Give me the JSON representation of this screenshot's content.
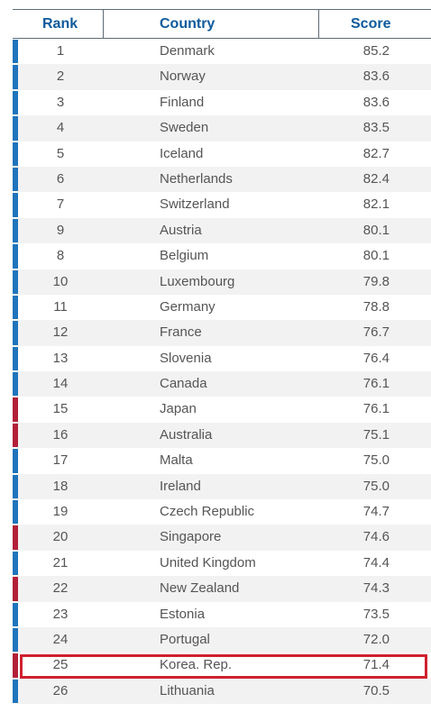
{
  "header": {
    "rank": "Rank",
    "country": "Country",
    "score": "Score"
  },
  "colors": {
    "blue": "#1f74bb",
    "red": "#b31f38",
    "highlight": "#d0202e"
  },
  "rows": [
    {
      "rank": "1",
      "country": "Denmark",
      "score": "85.2",
      "bar": "blue"
    },
    {
      "rank": "2",
      "country": "Norway",
      "score": "83.6",
      "bar": "blue"
    },
    {
      "rank": "3",
      "country": "Finland",
      "score": "83.6",
      "bar": "blue"
    },
    {
      "rank": "4",
      "country": "Sweden",
      "score": "83.5",
      "bar": "blue"
    },
    {
      "rank": "5",
      "country": "Iceland",
      "score": "82.7",
      "bar": "blue"
    },
    {
      "rank": "6",
      "country": "Netherlands",
      "score": "82.4",
      "bar": "blue"
    },
    {
      "rank": "7",
      "country": "Switzerland",
      "score": "82.1",
      "bar": "blue"
    },
    {
      "rank": "9",
      "country": "Austria",
      "score": "80.1",
      "bar": "blue"
    },
    {
      "rank": "8",
      "country": "Belgium",
      "score": "80.1",
      "bar": "blue"
    },
    {
      "rank": "10",
      "country": "Luxembourg",
      "score": "79.8",
      "bar": "blue"
    },
    {
      "rank": "11",
      "country": "Germany",
      "score": "78.8",
      "bar": "blue"
    },
    {
      "rank": "12",
      "country": "France",
      "score": "76.7",
      "bar": "blue"
    },
    {
      "rank": "13",
      "country": "Slovenia",
      "score": "76.4",
      "bar": "blue"
    },
    {
      "rank": "14",
      "country": "Canada",
      "score": "76.1",
      "bar": "blue"
    },
    {
      "rank": "15",
      "country": "Japan",
      "score": "76.1",
      "bar": "red"
    },
    {
      "rank": "16",
      "country": "Australia",
      "score": "75.1",
      "bar": "red"
    },
    {
      "rank": "17",
      "country": "Malta",
      "score": "75.0",
      "bar": "blue"
    },
    {
      "rank": "18",
      "country": "Ireland",
      "score": "75.0",
      "bar": "blue"
    },
    {
      "rank": "19",
      "country": "Czech Republic",
      "score": "74.7",
      "bar": "blue"
    },
    {
      "rank": "20",
      "country": "Singapore",
      "score": "74.6",
      "bar": "red"
    },
    {
      "rank": "21",
      "country": "United Kingdom",
      "score": "74.4",
      "bar": "blue"
    },
    {
      "rank": "22",
      "country": "New Zealand",
      "score": "74.3",
      "bar": "red"
    },
    {
      "rank": "23",
      "country": "Estonia",
      "score": "73.5",
      "bar": "blue"
    },
    {
      "rank": "24",
      "country": "Portugal",
      "score": "72.0",
      "bar": "blue"
    },
    {
      "rank": "25",
      "country": "Korea. Rep.",
      "score": "71.4",
      "bar": "red",
      "highlighted": true
    },
    {
      "rank": "26",
      "country": "Lithuania",
      "score": "70.5",
      "bar": "blue"
    }
  ]
}
